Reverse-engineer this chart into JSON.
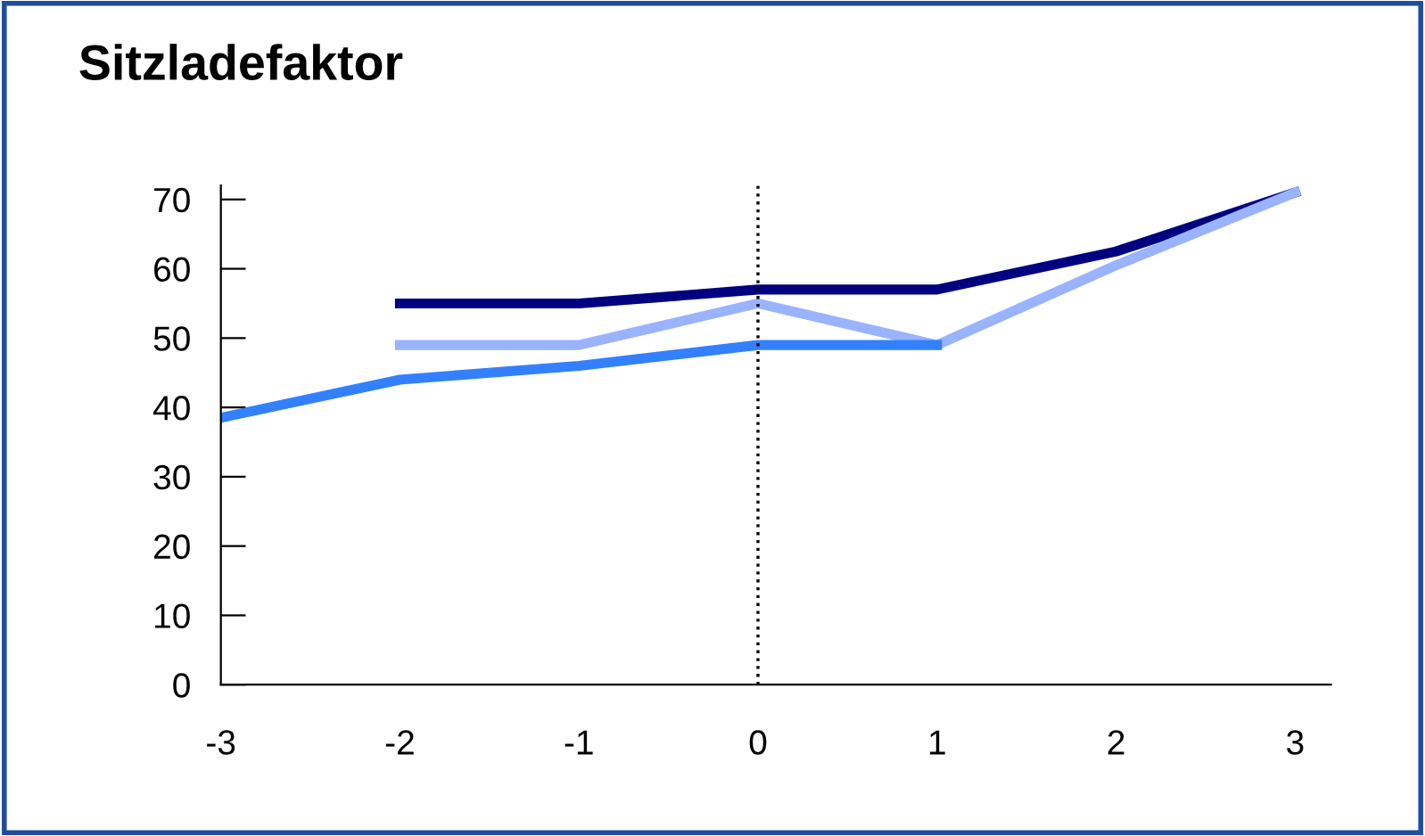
{
  "chart_data": {
    "type": "line",
    "title": "Sitzladefaktor",
    "x": [
      -3,
      -2,
      -1,
      0,
      1,
      2,
      3
    ],
    "series": [
      {
        "color": "#000080",
        "values": [
          null,
          55,
          55,
          57,
          57,
          62.5,
          71
        ]
      },
      {
        "color": "#99b3ff",
        "values": [
          null,
          49,
          49,
          55,
          49,
          60.5,
          71
        ]
      },
      {
        "color": "#3380ff",
        "values": [
          38.5,
          44,
          46,
          49,
          49,
          null,
          null
        ]
      }
    ],
    "xlim": [
      -3,
      3.2
    ],
    "xticks": [
      -3,
      -2,
      -1,
      0,
      1,
      2,
      3
    ],
    "ylim": [
      0,
      72
    ],
    "yticks": [
      0,
      10,
      20,
      30,
      40,
      50,
      60,
      70
    ],
    "ref_lines": [
      {
        "axis": "x",
        "value": 0,
        "line_style": "dotted",
        "color": "#000000"
      }
    ],
    "grid": false,
    "legend": false,
    "marker": "none",
    "line_style": "solid"
  }
}
